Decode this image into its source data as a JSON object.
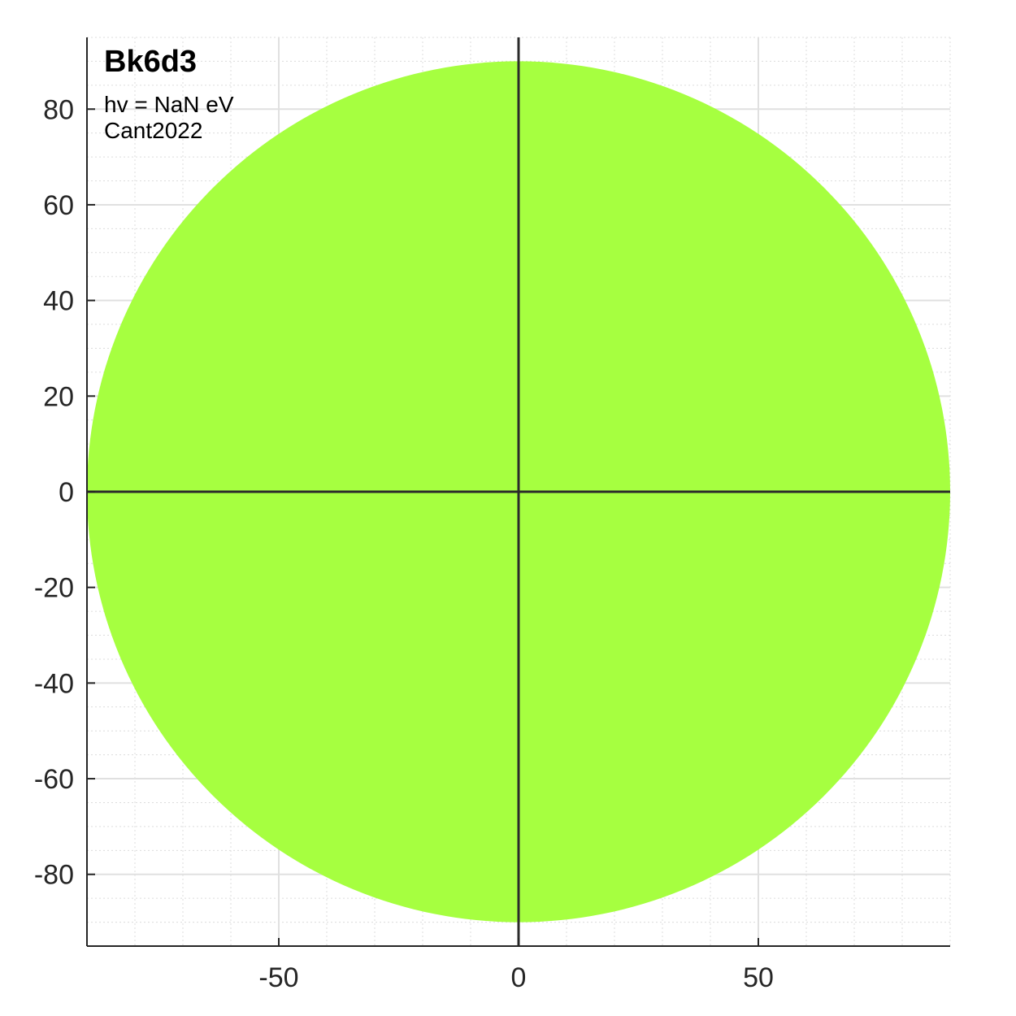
{
  "chart_data": {
    "type": "polar-angle-map",
    "title": "Bk6d3",
    "annotations": [
      "hv = NaN eV",
      "Cant2022"
    ],
    "xlim": [
      -90,
      90
    ],
    "ylim": [
      -95,
      95
    ],
    "x_ticks": [
      -50,
      0,
      50
    ],
    "x_tick_labels": [
      "-50",
      "0",
      "50"
    ],
    "y_ticks": [
      80,
      60,
      40,
      20,
      0,
      -20,
      -40,
      -60,
      -80
    ],
    "y_tick_labels": [
      "80",
      "60",
      "40",
      "20",
      "0",
      "-20",
      "-40",
      "-60",
      "-80"
    ],
    "x_minor_step": 10,
    "y_minor_step": 5,
    "grid": true,
    "minor_grid": true,
    "disk": {
      "center": [
        0,
        0
      ],
      "radius": 90,
      "color": "#a6ff40"
    },
    "crosshair": {
      "x": 0,
      "y": 0,
      "color": "#2b2b2b"
    }
  }
}
